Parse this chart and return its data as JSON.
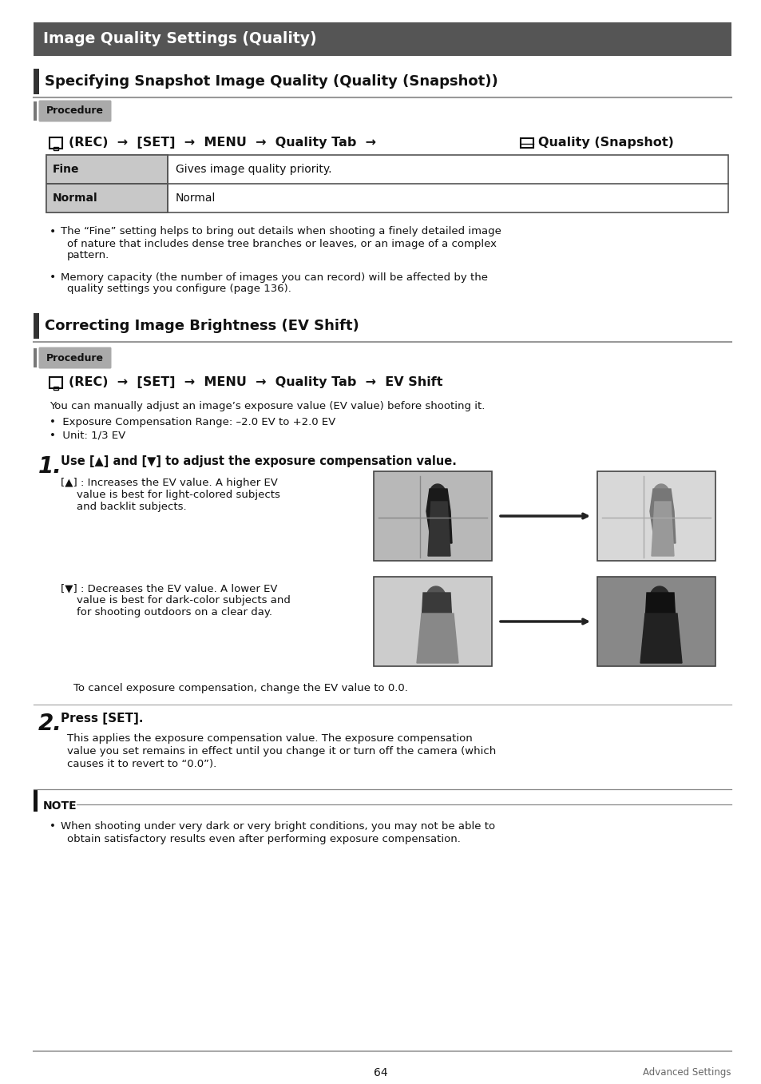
{
  "page_bg": "#ffffff",
  "header_bg": "#555555",
  "header_text": "Image Quality Settings (Quality)",
  "header_text_color": "#ffffff",
  "section1_title": "Specifying Snapshot Image Quality (Quality (Snapshot))",
  "section2_title": "Correcting Image Brightness (EV Shift)",
  "bar_color": "#333333",
  "procedure_bg": "#aaaaaa",
  "procedure_text": "Procedure",
  "table_rows": [
    [
      "Fine",
      "Gives image quality priority."
    ],
    [
      "Normal",
      "Normal"
    ]
  ],
  "table_col1_bg": "#c8c8c8",
  "table_border": "#555555",
  "bullets1": [
    "The “Fine” setting helps to bring out details when shooting a finely detailed image of nature that includes dense tree branches or leaves, or an image of a complex pattern.",
    "Memory capacity (the number of images you can record) will be affected by the quality settings you configure (page 136)."
  ],
  "ev_intro": "You can manually adjust an image’s exposure value (EV value) before shooting it.",
  "ev_bullets": [
    "Exposure Compensation Range: –2.0 EV to +2.0 EV",
    "Unit: 1/3 EV"
  ],
  "step1_title": "Use [▲] and [▼] to adjust the exposure compensation value.",
  "up_line1": "[▲] : Increases the EV value. A higher EV",
  "up_line2": "value is best for light-colored subjects",
  "up_line3": "and backlit subjects.",
  "down_line1": "[▼] : Decreases the EV value. A lower EV",
  "down_line2": "value is best for dark-color subjects and",
  "down_line3": "for shooting outdoors on a clear day.",
  "cancel_text": "To cancel exposure compensation, change the EV value to 0.0.",
  "step2_title": "Press [SET].",
  "step2_body1": "This applies the exposure compensation value. The exposure compensation",
  "step2_body2": "value you set remains in effect until you change it or turn off the camera (which",
  "step2_body3": "causes it to revert to “0.0”).",
  "note_label": "NOTE",
  "note_line1": "When shooting under very dark or very bright conditions, you may not be able to",
  "note_line2": "obtain satisfactory results even after performing exposure compensation.",
  "footer_page": "64",
  "footer_right": "Advanced Settings"
}
